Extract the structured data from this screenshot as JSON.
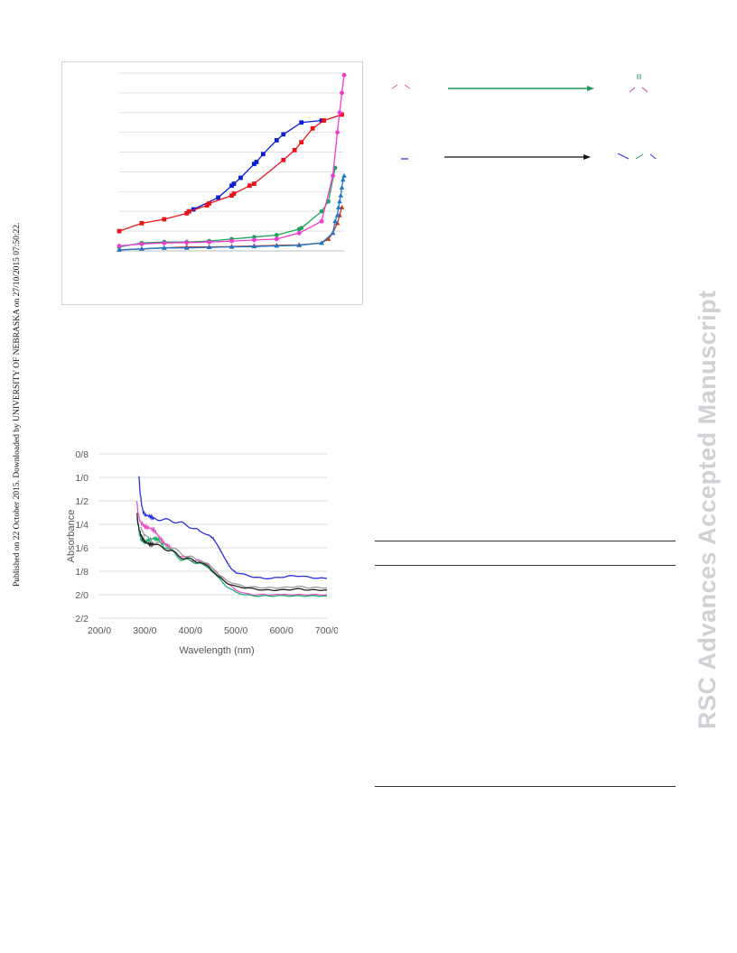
{
  "side_note": "Published on 22 October 2015. Downloaded by UNIVERSITY OF NEBRASKA on 27/10/2015 07:50:22.",
  "watermark": "RSC Advances Accepted Manuscript",
  "chart_data": [
    {
      "type": "line",
      "title": "",
      "xlabel": "",
      "ylabel": "",
      "grid": true,
      "legend": "none",
      "xlim": [
        0,
        1
      ],
      "ylim": [
        0,
        9
      ],
      "yticks": [
        0,
        1,
        2,
        3,
        4,
        5,
        6,
        7,
        8,
        9
      ],
      "series": [
        {
          "color": "#0a1ed6",
          "marker": "square",
          "x": [
            0.31,
            0.33,
            0.44,
            0.5,
            0.51,
            0.54,
            0.6,
            0.61,
            0.64,
            0.7,
            0.73,
            0.81,
            0.9
          ],
          "y": [
            2.0,
            2.1,
            2.7,
            3.3,
            3.4,
            3.7,
            4.4,
            4.5,
            4.9,
            5.6,
            5.9,
            6.5,
            6.6
          ]
        },
        {
          "color": "#e8161b",
          "marker": "square",
          "x": [
            0.0,
            0.1,
            0.2,
            0.3,
            0.31,
            0.39,
            0.4,
            0.5,
            0.51,
            0.58,
            0.6,
            0.73,
            0.78,
            0.81,
            0.86,
            0.91,
            0.99
          ],
          "y": [
            1.0,
            1.4,
            1.6,
            1.9,
            2.0,
            2.3,
            2.4,
            2.8,
            2.9,
            3.3,
            3.4,
            4.6,
            5.1,
            5.5,
            6.2,
            6.6,
            6.9
          ]
        },
        {
          "color": "#1aa65a",
          "marker": "circle",
          "x": [
            0.0,
            0.1,
            0.2,
            0.3,
            0.4,
            0.5,
            0.6,
            0.7,
            0.8,
            0.81,
            0.9,
            0.93,
            0.96
          ],
          "y": [
            0.2,
            0.4,
            0.45,
            0.45,
            0.5,
            0.6,
            0.7,
            0.8,
            1.1,
            1.15,
            2.0,
            2.5,
            4.2
          ]
        },
        {
          "color": "#f03ad0",
          "marker": "circle",
          "x": [
            0.0,
            0.1,
            0.2,
            0.3,
            0.4,
            0.5,
            0.6,
            0.7,
            0.8,
            0.9,
            0.95,
            0.97,
            0.98,
            0.99,
            1.0
          ],
          "y": [
            0.25,
            0.35,
            0.4,
            0.42,
            0.45,
            0.5,
            0.55,
            0.6,
            0.9,
            1.5,
            3.8,
            6.0,
            7.0,
            8.0,
            8.9
          ]
        },
        {
          "color": "#c0392b",
          "marker": "triangle",
          "x": [
            0.0,
            0.1,
            0.2,
            0.3,
            0.4,
            0.5,
            0.6,
            0.7,
            0.8,
            0.9,
            0.93,
            0.95,
            0.97,
            0.98,
            0.99
          ],
          "y": [
            0.05,
            0.1,
            0.15,
            0.2,
            0.2,
            0.22,
            0.25,
            0.28,
            0.3,
            0.4,
            0.6,
            0.9,
            1.4,
            1.8,
            2.2
          ]
        },
        {
          "color": "#1f78c8",
          "marker": "triangle",
          "x": [
            0.0,
            0.1,
            0.2,
            0.3,
            0.4,
            0.5,
            0.6,
            0.7,
            0.8,
            0.9,
            0.95,
            0.96,
            0.97,
            0.975,
            0.98,
            0.985,
            0.99,
            0.995,
            1.0
          ],
          "y": [
            0.05,
            0.1,
            0.15,
            0.15,
            0.18,
            0.2,
            0.22,
            0.25,
            0.28,
            0.4,
            0.9,
            1.5,
            1.8,
            2.2,
            2.5,
            2.8,
            3.2,
            3.6,
            3.8
          ]
        }
      ]
    },
    {
      "type": "line",
      "title": "",
      "xlabel": "Wavelength (nm)",
      "ylabel": "Absorbance",
      "grid": true,
      "legend": "none",
      "xlim": [
        200,
        700
      ],
      "xticks": [
        200,
        300,
        400,
        500,
        600,
        700
      ],
      "xtick_labels": [
        "200/0",
        "300/0",
        "400/0",
        "500/0",
        "600/0",
        "700/0"
      ],
      "ylim": [
        0.8,
        2.2
      ],
      "yticks": [
        0.8,
        1.0,
        1.2,
        1.4,
        1.6,
        1.8,
        2.0,
        2.2
      ],
      "ytick_labels": [
        "0/8",
        "1/0",
        "1/2",
        "1/4",
        "1/6",
        "1/8",
        "2/0",
        "2/2"
      ],
      "y_inverted": true,
      "series": [
        {
          "color": "#2a2fe0",
          "x": [
            287,
            290,
            295,
            300,
            310,
            320,
            340,
            360,
            380,
            400,
            420,
            440,
            450,
            460,
            470,
            480,
            490,
            500,
            520,
            540,
            560,
            580,
            600,
            620,
            640,
            660,
            680,
            700
          ],
          "y": [
            1.0,
            1.15,
            1.28,
            1.32,
            1.33,
            1.35,
            1.36,
            1.37,
            1.39,
            1.42,
            1.46,
            1.49,
            1.52,
            1.58,
            1.65,
            1.72,
            1.78,
            1.81,
            1.83,
            1.85,
            1.86,
            1.86,
            1.85,
            1.84,
            1.84,
            1.85,
            1.86,
            1.86
          ]
        },
        {
          "color": "#e84fc8",
          "x": [
            282,
            285,
            290,
            295,
            300,
            310,
            320,
            330,
            340,
            350,
            360,
            380,
            400,
            420,
            440,
            460,
            480,
            500,
            520,
            540,
            560,
            600,
            650,
            700
          ],
          "y": [
            1.2,
            1.3,
            1.38,
            1.4,
            1.42,
            1.43,
            1.45,
            1.5,
            1.55,
            1.58,
            1.62,
            1.68,
            1.7,
            1.71,
            1.74,
            1.82,
            1.9,
            1.96,
            1.99,
            2.0,
            2.0,
            2.0,
            2.0,
            2.0
          ]
        },
        {
          "color": "#18b36a",
          "x": [
            283,
            287,
            290,
            295,
            300,
            310,
            320,
            330,
            340,
            360,
            380,
            400,
            420,
            440,
            460,
            480,
            500,
            520,
            540,
            560,
            600,
            650,
            700
          ],
          "y": [
            1.35,
            1.45,
            1.52,
            1.54,
            1.55,
            1.53,
            1.52,
            1.53,
            1.58,
            1.63,
            1.7,
            1.71,
            1.73,
            1.77,
            1.85,
            1.93,
            1.98,
            2.0,
            2.01,
            2.01,
            2.01,
            2.01,
            2.01
          ]
        },
        {
          "color": "#222222",
          "x": [
            283,
            285,
            290,
            295,
            300,
            310,
            320,
            340,
            360,
            380,
            400,
            420,
            440,
            460,
            480,
            500,
            520,
            540,
            560,
            600,
            640,
            660,
            680,
            700
          ],
          "y": [
            1.3,
            1.4,
            1.48,
            1.52,
            1.55,
            1.57,
            1.57,
            1.6,
            1.63,
            1.68,
            1.7,
            1.72,
            1.76,
            1.84,
            1.9,
            1.93,
            1.94,
            1.95,
            1.96,
            1.96,
            1.95,
            1.96,
            1.96,
            1.96
          ]
        },
        {
          "color": "#9a9a9a",
          "x": [
            290,
            300,
            320,
            340,
            360,
            380,
            400,
            420,
            440,
            460,
            480,
            500,
            520,
            560,
            600,
            640,
            660,
            680,
            700
          ],
          "y": [
            1.42,
            1.5,
            1.55,
            1.57,
            1.6,
            1.65,
            1.68,
            1.71,
            1.74,
            1.82,
            1.88,
            1.91,
            1.93,
            1.94,
            1.94,
            1.93,
            1.94,
            1.94,
            1.94
          ]
        }
      ]
    }
  ],
  "scheme": {
    "glyphs_row1_left": "⌃ ⌃",
    "glyphs_row1_right": "‖",
    "glyphs_row2_left": "—",
    "arrow1_color": "#1a9a5a",
    "arrow2_color": "#111111"
  }
}
